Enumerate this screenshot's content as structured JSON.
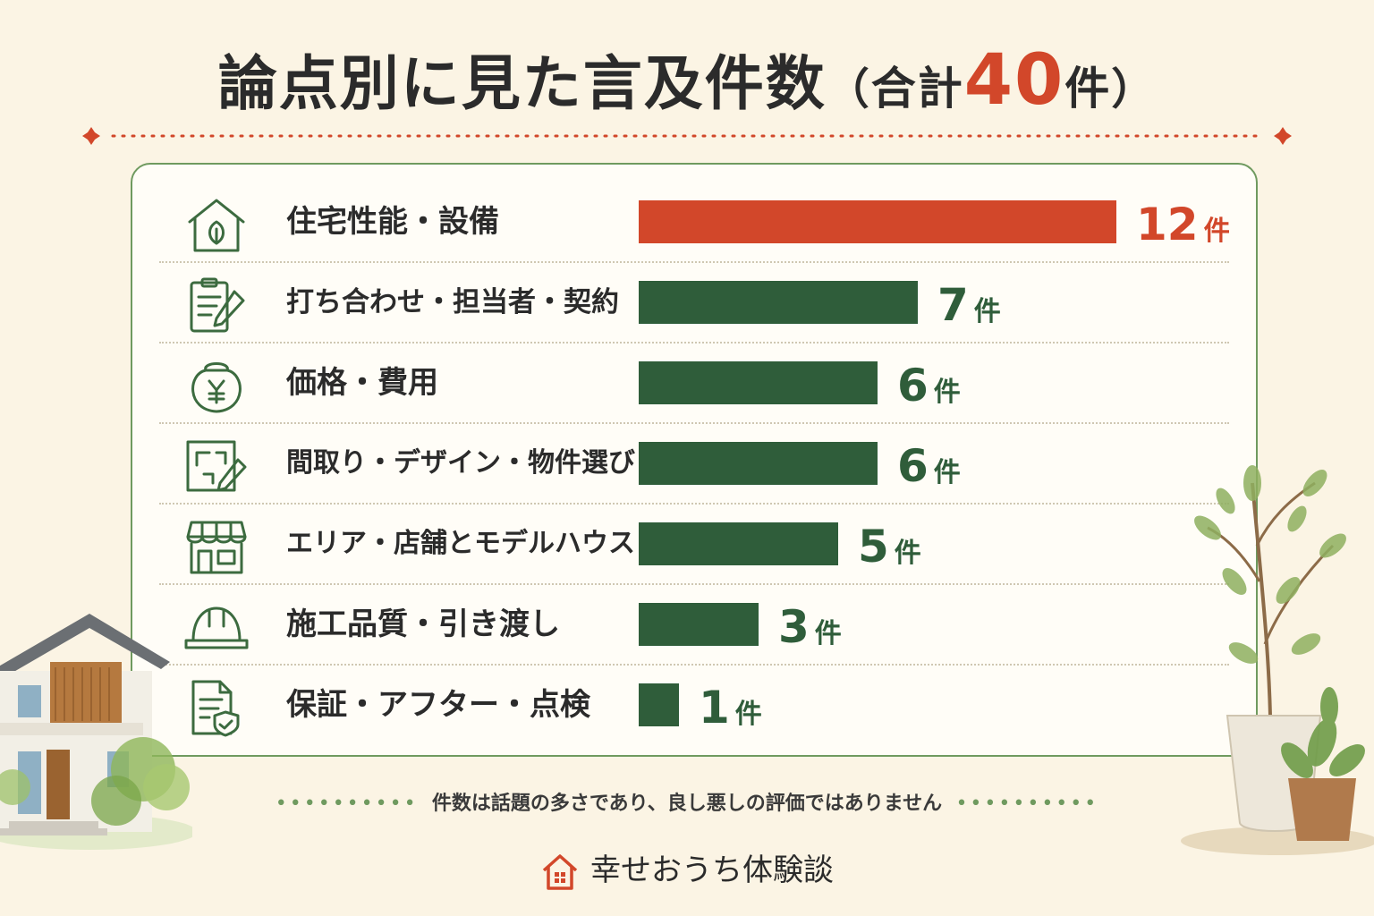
{
  "title": {
    "main": "論点別に見た言及件数",
    "paren_open": "（",
    "sub": "合計",
    "total": "40",
    "unit": "件",
    "paren_close": "）"
  },
  "colors": {
    "accent": "#d2472a",
    "bar": "#2f5d3a",
    "highlight_bar": "#d2472a",
    "icon_stroke": "#3c6b3f"
  },
  "rows": [
    {
      "label": "住宅性能・設備",
      "icon": "house-leaf-icon"
    },
    {
      "label": "打ち合わせ・担当者・契約",
      "icon": "clipboard-pen-icon"
    },
    {
      "label": "価格・費用",
      "icon": "yen-purse-icon"
    },
    {
      "label": "間取り・デザイン・物件選び",
      "icon": "floorplan-pen-icon"
    },
    {
      "label": "エリア・店舗とモデルハウス",
      "icon": "storefront-icon"
    },
    {
      "label": "施工品質・引き渡し",
      "icon": "hardhat-icon"
    },
    {
      "label": "保証・アフター・点検",
      "icon": "document-shield-icon"
    }
  ],
  "chart_data": {
    "type": "bar",
    "orientation": "horizontal",
    "categories": [
      "住宅性能・設備",
      "打ち合わせ・担当者・契約",
      "価格・費用",
      "間取り・デザイン・物件選び",
      "エリア・店舗とモデルハウス",
      "施工品質・引き渡し",
      "保証・アフター・点検"
    ],
    "values": [
      12,
      7,
      6,
      6,
      5,
      3,
      1
    ],
    "value_unit": "件",
    "highlight_index": 0,
    "xlim": [
      0,
      12
    ],
    "grid": false,
    "legend": "none"
  },
  "footer": {
    "note": "件数は話題の多さであり、良し悪しの評価ではありません",
    "brand": "幸せおうち体験談",
    "brand_icon": "house-icon"
  }
}
